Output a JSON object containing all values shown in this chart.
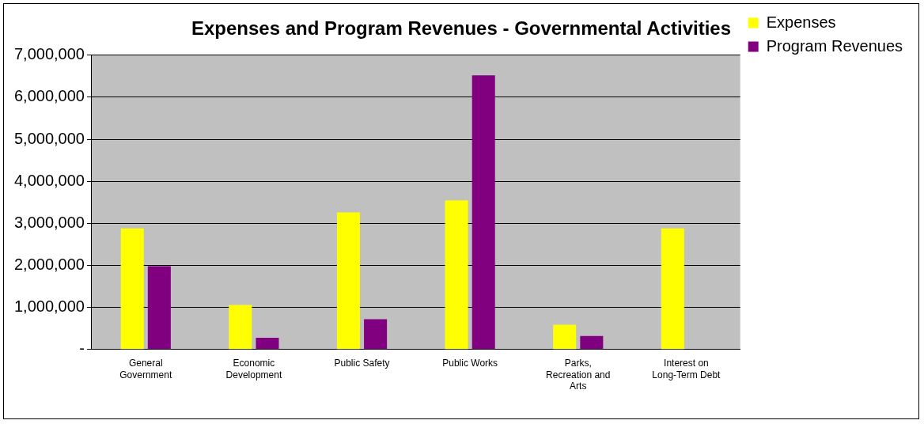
{
  "chart_data": {
    "type": "bar",
    "title": "Expenses and Program Revenues - Governmental Activities",
    "categories": [
      "General Government",
      "Economic Development",
      "Public Safety",
      "Public Works",
      "Parks, Recreation and Arts",
      "Interest on Long-Term Debt"
    ],
    "series": [
      {
        "name": "Expenses",
        "color": "#ffff00",
        "values": [
          2880000,
          1060000,
          3260000,
          3550000,
          590000,
          2880000
        ]
      },
      {
        "name": "Program Revenues",
        "color": "#800080",
        "values": [
          1980000,
          280000,
          720000,
          6520000,
          320000,
          null
        ]
      }
    ],
    "ylim": [
      0,
      7000000
    ],
    "yticks": [
      {
        "value": 0,
        "label": "-"
      },
      {
        "value": 1000000,
        "label": "1,000,000"
      },
      {
        "value": 2000000,
        "label": "2,000,000"
      },
      {
        "value": 3000000,
        "label": "3,000,000"
      },
      {
        "value": 4000000,
        "label": "4,000,000"
      },
      {
        "value": 5000000,
        "label": "5,000,000"
      },
      {
        "value": 6000000,
        "label": "6,000,000"
      },
      {
        "value": 7000000,
        "label": "7,000,000"
      }
    ],
    "grid": "y",
    "legend": "right"
  }
}
